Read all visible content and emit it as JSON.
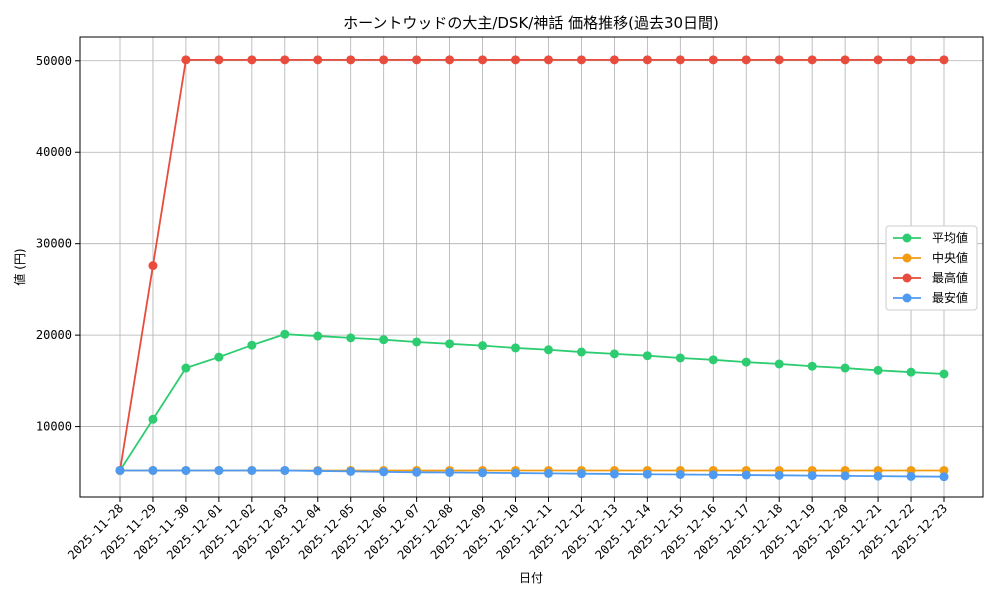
{
  "chart_data": {
    "type": "line",
    "title": "ホーントウッドの大主/DSK/神話 価格推移(過去30日間)",
    "xlabel": "日付",
    "ylabel": "値 (円)",
    "ylim": [
      2300,
      52600
    ],
    "yticks": [
      10000,
      20000,
      30000,
      40000,
      50000
    ],
    "grid": true,
    "legend_position": "center-right",
    "categories": [
      "2025-11-28",
      "2025-11-29",
      "2025-11-30",
      "2025-12-01",
      "2025-12-02",
      "2025-12-03",
      "2025-12-04",
      "2025-12-05",
      "2025-12-06",
      "2025-12-07",
      "2025-12-08",
      "2025-12-09",
      "2025-12-10",
      "2025-12-11",
      "2025-12-12",
      "2025-12-13",
      "2025-12-14",
      "2025-12-15",
      "2025-12-16",
      "2025-12-17",
      "2025-12-18",
      "2025-12-19",
      "2025-12-20",
      "2025-12-21",
      "2025-12-22",
      "2025-12-23"
    ],
    "series": [
      {
        "name": "平均値",
        "color": "#2ecc71",
        "values": [
          5200,
          10800,
          16400,
          17600,
          18900,
          20100,
          19900,
          19700,
          19500,
          19250,
          19050,
          18850,
          18600,
          18400,
          18150,
          17950,
          17750,
          17500,
          17300,
          17050,
          16850,
          16600,
          16400,
          16150,
          15950,
          15750
        ]
      },
      {
        "name": "中央値",
        "color": "#f39c12",
        "values": [
          5200,
          5200,
          5200,
          5200,
          5200,
          5200,
          5200,
          5200,
          5200,
          5200,
          5200,
          5200,
          5200,
          5200,
          5200,
          5200,
          5200,
          5200,
          5200,
          5200,
          5200,
          5200,
          5200,
          5200,
          5200,
          5200
        ]
      },
      {
        "name": "最高値",
        "color": "#e74c3c",
        "values": [
          5200,
          27600,
          50100,
          50100,
          50100,
          50100,
          50100,
          50100,
          50100,
          50100,
          50100,
          50100,
          50100,
          50100,
          50100,
          50100,
          50100,
          50100,
          50100,
          50100,
          50100,
          50100,
          50100,
          50100,
          50100,
          50100
        ]
      },
      {
        "name": "最安値",
        "color": "#4e9af1",
        "values": [
          5200,
          5200,
          5200,
          5200,
          5200,
          5200,
          5150,
          5100,
          5050,
          5000,
          4980,
          4950,
          4920,
          4880,
          4850,
          4820,
          4790,
          4760,
          4730,
          4700,
          4670,
          4640,
          4610,
          4580,
          4550,
          4520
        ]
      }
    ]
  }
}
